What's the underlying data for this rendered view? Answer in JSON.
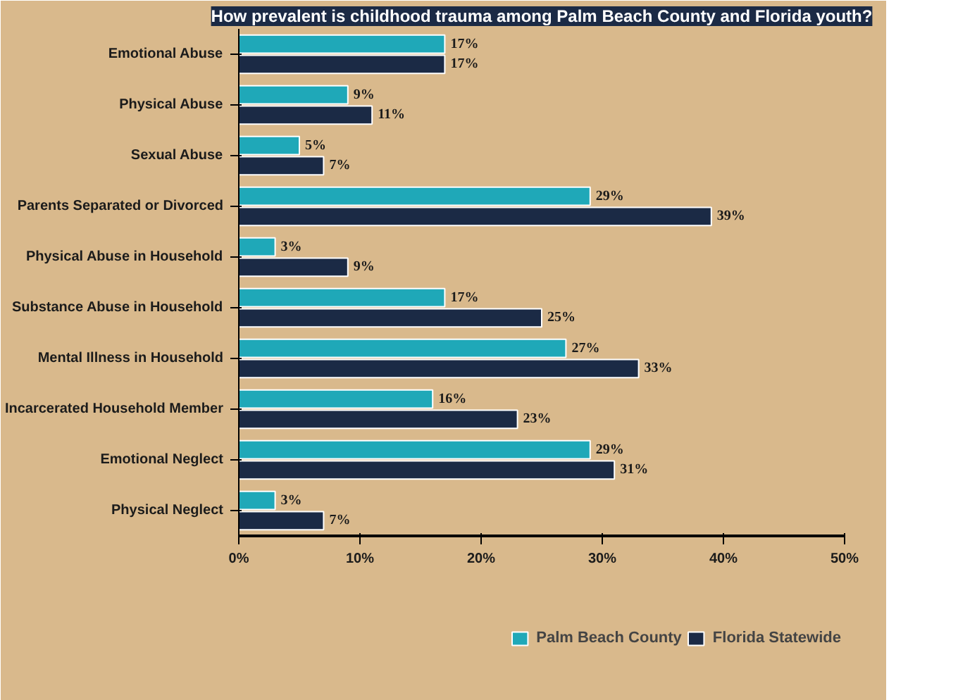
{
  "chart_data": {
    "type": "bar",
    "orientation": "horizontal",
    "title": "How prevalent is childhood trauma among Palm Beach County and Florida youth?",
    "categories": [
      "Emotional Abuse",
      "Physical Abuse",
      "Sexual Abuse",
      "Parents Separated or Divorced",
      "Physical Abuse in Household",
      "Substance Abuse in Household",
      "Mental Illness in Household",
      "Incarcerated Household Member",
      "Emotional Neglect",
      "Physical Neglect"
    ],
    "series": [
      {
        "name": "Palm Beach County",
        "color": "#1fa8b8",
        "values": [
          17,
          9,
          5,
          29,
          3,
          17,
          27,
          16,
          29,
          3
        ],
        "value_labels": [
          "17%",
          "9%",
          "5%",
          "29%",
          "3%",
          "17%",
          "27%",
          "16%",
          "29%",
          "3%"
        ]
      },
      {
        "name": "Florida Statewide",
        "color": "#1b2a45",
        "values": [
          17,
          11,
          7,
          39,
          9,
          25,
          33,
          23,
          31,
          7
        ],
        "value_labels": [
          "17%",
          "11%",
          "7%",
          "39%",
          "9%",
          "25%",
          "33%",
          "23%",
          "31%",
          "7%"
        ]
      }
    ],
    "xlim": [
      0,
      50
    ],
    "xticks": [
      {
        "value": 0,
        "label": "0%"
      },
      {
        "value": 10,
        "label": "10%"
      },
      {
        "value": 20,
        "label": "20%"
      },
      {
        "value": 30,
        "label": "30%"
      },
      {
        "value": 40,
        "label": "40%"
      },
      {
        "value": 50,
        "label": "50%"
      }
    ],
    "grid": false,
    "legend": "bottom"
  }
}
